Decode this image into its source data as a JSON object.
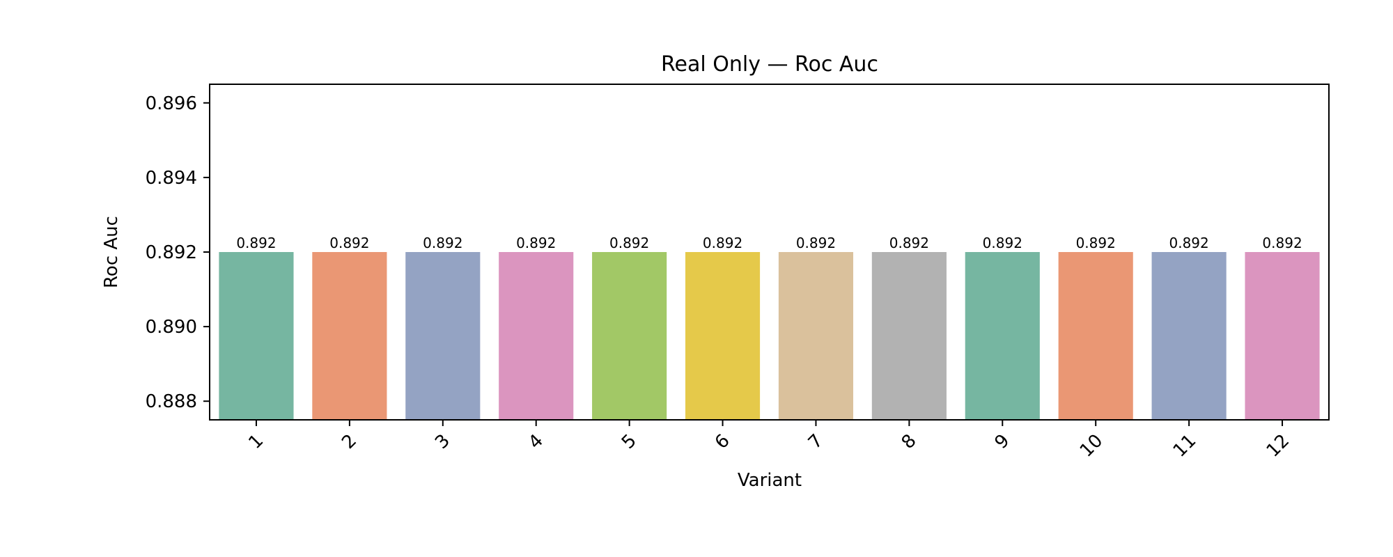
{
  "chart_data": {
    "type": "bar",
    "title": "Real Only — Roc Auc",
    "xlabel": "Variant",
    "ylabel": "Roc Auc",
    "categories": [
      "1",
      "2",
      "3",
      "4",
      "5",
      "6",
      "7",
      "8",
      "9",
      "10",
      "11",
      "12"
    ],
    "values": [
      0.892,
      0.892,
      0.892,
      0.892,
      0.892,
      0.892,
      0.892,
      0.892,
      0.892,
      0.892,
      0.892,
      0.892
    ],
    "value_labels": [
      "0.892",
      "0.892",
      "0.892",
      "0.892",
      "0.892",
      "0.892",
      "0.892",
      "0.892",
      "0.892",
      "0.892",
      "0.892",
      "0.892"
    ],
    "ylim": [
      0.8875,
      0.8965
    ],
    "yticks": [
      0.888,
      0.89,
      0.892,
      0.894,
      0.896
    ],
    "ytick_labels": [
      "0.888",
      "0.890",
      "0.892",
      "0.894",
      "0.896"
    ],
    "colors": [
      "#76b6a1",
      "#ea9774",
      "#94a3c3",
      "#db95bf",
      "#a2c866",
      "#e5c94a",
      "#dac19c",
      "#b2b2b2",
      "#76b6a1",
      "#ea9774",
      "#94a3c3",
      "#db95bf"
    ],
    "grid": false,
    "legend": "none"
  }
}
